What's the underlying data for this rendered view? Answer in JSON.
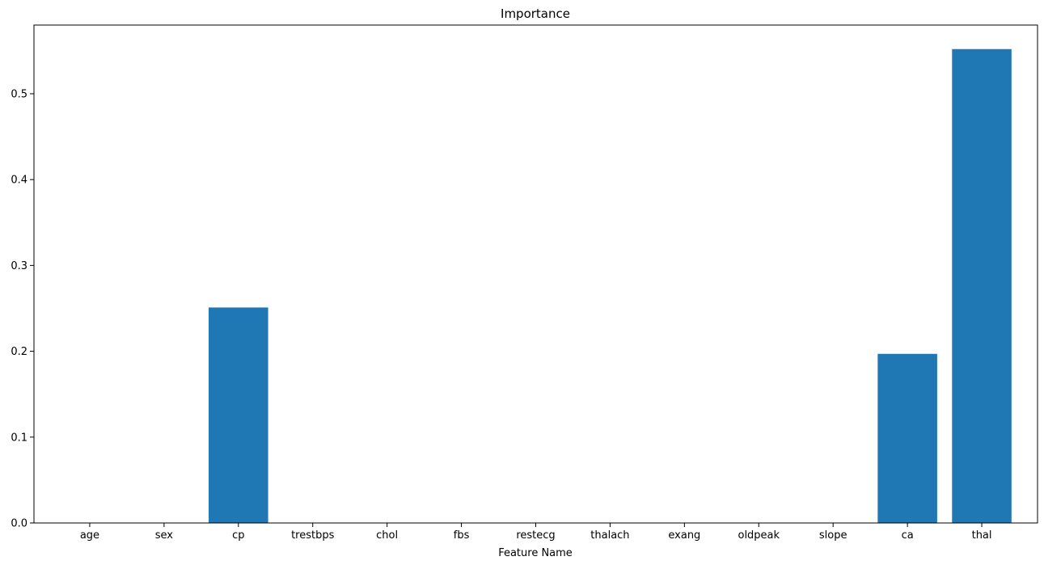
{
  "chart_data": {
    "type": "bar",
    "title": "Importance",
    "xlabel": "Feature Name",
    "ylabel": "",
    "categories": [
      "age",
      "sex",
      "cp",
      "trestbps",
      "chol",
      "fbs",
      "restecg",
      "thalach",
      "exang",
      "oldpeak",
      "slope",
      "ca",
      "thal"
    ],
    "values": [
      0,
      0,
      0.251,
      0,
      0,
      0,
      0,
      0,
      0,
      0,
      0,
      0.197,
      0.552
    ],
    "ylim": [
      0,
      0.58
    ],
    "yticks": [
      "0.0",
      "0.1",
      "0.2",
      "0.3",
      "0.4",
      "0.5"
    ],
    "bar_color": "#1f77b4",
    "grid": false,
    "legend": "none"
  }
}
